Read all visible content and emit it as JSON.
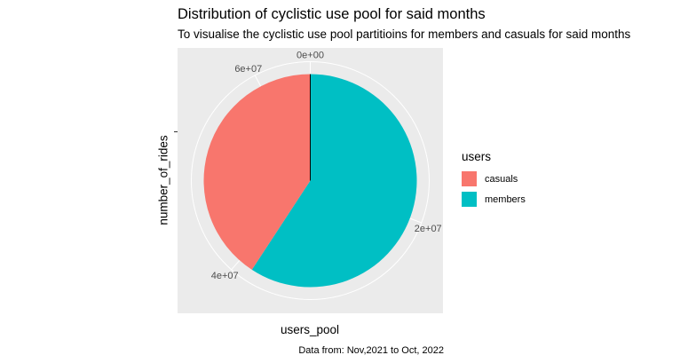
{
  "title": "Distribution of cyclistic use pool for said months",
  "subtitle": "To visualise the cyclistic use pool partitioins for members and casuals for said months",
  "caption": "Data from: Nov,2021 to Oct, 2022",
  "chart_data": {
    "type": "pie",
    "title": "Distribution of cyclistic use pool for said months",
    "subtitle": "To visualise the cyclistic use pool partitioins for members and casuals for said months",
    "xlabel": "users_pool",
    "ylabel": "number_of_rides",
    "legend_title": "users",
    "legend_position": "right",
    "total": 65000000,
    "theta_ticks": [
      {
        "label": "0e+00",
        "value": 0
      },
      {
        "label": "2e+07",
        "value": 20000000
      },
      {
        "label": "4e+07",
        "value": 40000000
      },
      {
        "label": "6e+07",
        "value": 60000000
      }
    ],
    "slices": [
      {
        "name": "members",
        "value": 38500000,
        "color": "#00bfc4"
      },
      {
        "name": "casuals",
        "value": 26500000,
        "color": "#f8766d"
      }
    ],
    "legend": [
      {
        "name": "casuals",
        "color": "#f8766d"
      },
      {
        "name": "members",
        "color": "#00bfc4"
      }
    ]
  }
}
